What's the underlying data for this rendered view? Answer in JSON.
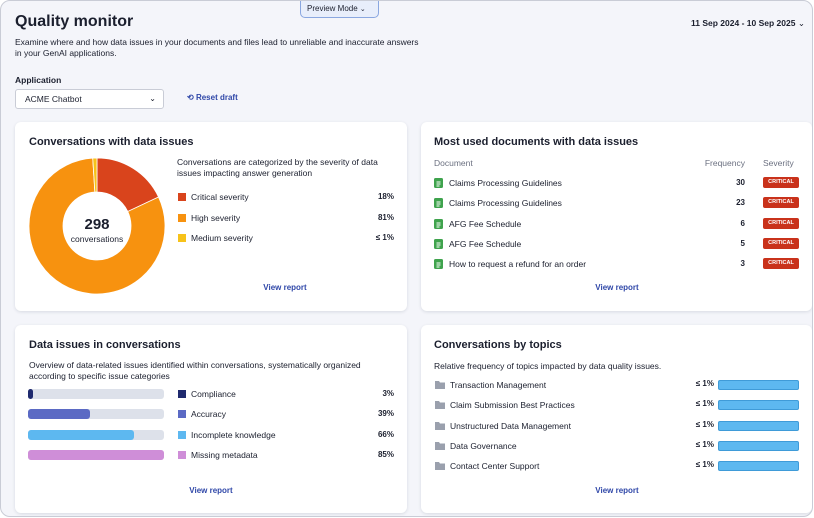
{
  "header": {
    "title": "Quality monitor",
    "description": "Examine where and how data issues in your documents and files lead to unreliable and inaccurate answers in your GenAI applications.",
    "preview_mode": "Preview Mode",
    "date_range": "11 Sep 2024 - 10 Sep 2025"
  },
  "filters": {
    "application_label": "Application",
    "application_value": "ACME Chatbot",
    "reset": "Reset draft"
  },
  "severity_card": {
    "title": "Conversations with data issues",
    "total": 298,
    "total_label": "conversations",
    "description": "Conversations are categorized by the severity of data issues impacting answer generation",
    "segments": [
      {
        "name": "Critical severity",
        "value": 18,
        "value_label": "18%",
        "color": "#d9441c"
      },
      {
        "name": "High severity",
        "value": 81,
        "value_label": "81%",
        "color": "#f7920f"
      },
      {
        "name": "Medium severity",
        "value": 1,
        "value_label": "≤ 1%",
        "color": "#f7c21a"
      }
    ],
    "link": "View report"
  },
  "documents_card": {
    "title": "Most used documents with data issues",
    "columns": [
      "Document",
      "Frequency",
      "Severity"
    ],
    "rows": [
      {
        "name": "Claims Processing Guidelines",
        "frequency": 30,
        "severity": "CRITICAL"
      },
      {
        "name": "Claims Processing Guidelines",
        "frequency": 23,
        "severity": "CRITICAL"
      },
      {
        "name": "AFG Fee Schedule",
        "frequency": 6,
        "severity": "CRITICAL"
      },
      {
        "name": "AFG Fee Schedule",
        "frequency": 5,
        "severity": "CRITICAL"
      },
      {
        "name": "How to request a refund for an order",
        "frequency": 3,
        "severity": "CRITICAL"
      }
    ],
    "link": "View report"
  },
  "issues_card": {
    "title": "Data issues in conversations",
    "description": "Overview of data-related issues identified within conversations, systematically organized according to specific issue categories",
    "rows": [
      {
        "name": "Compliance",
        "value": 3,
        "value_label": "3%",
        "color": "#1f2a6e"
      },
      {
        "name": "Accuracy",
        "value": 39,
        "value_label": "39%",
        "color": "#5b6ac4"
      },
      {
        "name": "Incomplete knowledge",
        "value": 66,
        "value_label": "66%",
        "color": "#5db8f0"
      },
      {
        "name": "Missing metadata",
        "value": 85,
        "value_label": "85%",
        "color": "#cf8ed8"
      }
    ],
    "link": "View report"
  },
  "topics_card": {
    "title": "Conversations by topics",
    "description": "Relative frequency of topics impacted by data quality issues.",
    "color": "#5db8f0",
    "rows": [
      {
        "name": "Transaction Management",
        "value": 1,
        "value_label": "≤ 1%"
      },
      {
        "name": "Claim Submission Best Practices",
        "value": 1,
        "value_label": "≤ 1%"
      },
      {
        "name": "Unstructured Data Management",
        "value": 1,
        "value_label": "≤ 1%"
      },
      {
        "name": "Data Governance",
        "value": 1,
        "value_label": "≤ 1%"
      },
      {
        "name": "Contact Center Support",
        "value": 1,
        "value_label": "≤ 1%"
      }
    ],
    "link": "View report"
  }
}
